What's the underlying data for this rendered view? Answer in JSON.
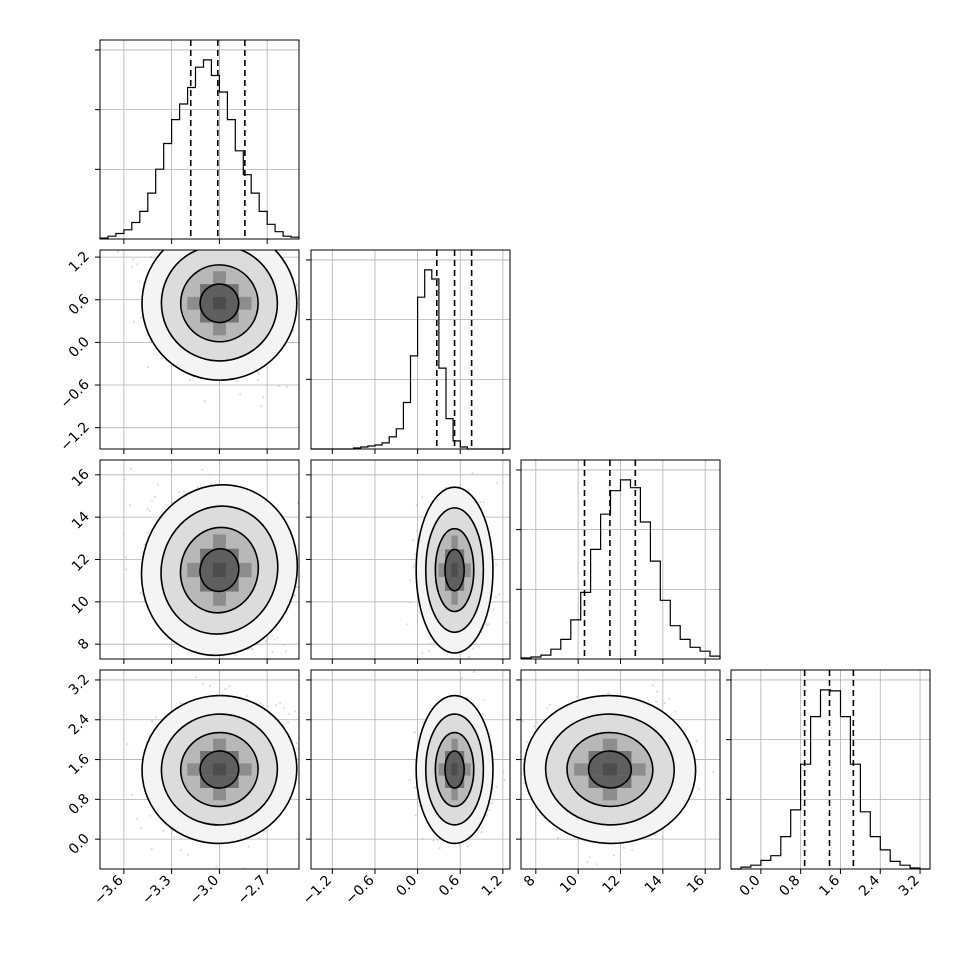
{
  "chart_data": {
    "type": "corner",
    "parameters": [
      {
        "index": 0,
        "x_ticks": [
          "−3.6",
          "−3.3",
          "−3.0",
          "−2.7"
        ],
        "y_ticks": [],
        "xlim": [
          -3.75,
          -2.5
        ],
        "quantiles": [
          -3.18,
          -3.01,
          -2.84
        ],
        "histogram": {
          "bin_start": -3.75,
          "bin_width": 0.05,
          "counts": [
            1,
            3,
            6,
            10,
            18,
            30,
            50,
            76,
            104,
            130,
            147,
            165,
            187,
            195,
            178,
            160,
            130,
            96,
            70,
            50,
            30,
            16,
            8,
            3,
            2
          ]
        }
      },
      {
        "index": 1,
        "x_ticks": [
          "−1.2",
          "−0.6",
          "0.0",
          "0.6",
          "1.2"
        ],
        "y_ticks": [
          "−1.2",
          "−0.6",
          "0.0",
          "0.6",
          "1.2"
        ],
        "xlim": [
          -1.5,
          1.3
        ],
        "quantiles": [
          0.27,
          0.52,
          0.76
        ],
        "histogram": {
          "bin_start": -1.5,
          "bin_width": 0.1,
          "counts": [
            0,
            0,
            0,
            0,
            0,
            0,
            1,
            2,
            3,
            4,
            6,
            12,
            20,
            46,
            92,
            150,
            177,
            168,
            80,
            30,
            8,
            2,
            0,
            0,
            0,
            0,
            0,
            0
          ]
        }
      },
      {
        "index": 2,
        "x_ticks": [
          "8",
          "10",
          "12",
          "14",
          "16"
        ],
        "y_ticks": [
          "8",
          "10",
          "12",
          "14",
          "16"
        ],
        "xlim": [
          7.3,
          16.7
        ],
        "quantiles": [
          10.3,
          11.5,
          12.7
        ],
        "histogram": {
          "bin_start": 7.3,
          "bin_width": 0.47,
          "counts": [
            1,
            2,
            4,
            10,
            20,
            40,
            68,
            112,
            148,
            172,
            183,
            175,
            140,
            100,
            60,
            34,
            20,
            12,
            8,
            3
          ]
        }
      },
      {
        "index": 3,
        "x_ticks": [
          "0.0",
          "0.8",
          "1.6",
          "2.4",
          "3.2"
        ],
        "y_ticks": [
          "0.0",
          "0.8",
          "1.6",
          "2.4",
          "3.2"
        ],
        "xlim": [
          -0.6,
          3.4
        ],
        "quantiles": [
          0.88,
          1.38,
          1.86
        ],
        "histogram": {
          "bin_start": -0.6,
          "bin_width": 0.2,
          "counts": [
            0,
            2,
            4,
            9,
            14,
            34,
            62,
            110,
            160,
            188,
            187,
            160,
            110,
            60,
            34,
            20,
            8,
            4,
            1,
            0
          ]
        }
      }
    ],
    "joint": [
      {
        "row": 1,
        "col": 0,
        "cx": -3.0,
        "cy": 0.55,
        "sx": 0.18,
        "sy": 0.4,
        "rho": -0.2
      },
      {
        "row": 2,
        "col": 0,
        "cx": -3.0,
        "cy": 11.5,
        "sx": 0.18,
        "sy": 1.5,
        "rho": -0.3
      },
      {
        "row": 2,
        "col": 1,
        "cx": 0.52,
        "cy": 11.5,
        "sx": 0.2,
        "sy": 1.45,
        "rho": 0.0
      },
      {
        "row": 3,
        "col": 0,
        "cx": -3.0,
        "cy": 1.4,
        "sx": 0.18,
        "sy": 0.55,
        "rho": 0.15
      },
      {
        "row": 3,
        "col": 1,
        "cx": 0.52,
        "cy": 1.4,
        "sx": 0.2,
        "sy": 0.55,
        "rho": 0.0
      },
      {
        "row": 3,
        "col": 2,
        "cx": 11.5,
        "cy": 1.4,
        "sx": 1.5,
        "sy": 0.55,
        "rho": -0.05
      }
    ],
    "grid": true,
    "contour_levels_sigma": [
      0.5,
      1.0,
      1.5,
      2.0
    ],
    "colors": {
      "axes": "#000000",
      "grid": "#b0b0b0",
      "points": "#bdbdbd",
      "contour": "#000000",
      "histogram": "#000000"
    }
  }
}
